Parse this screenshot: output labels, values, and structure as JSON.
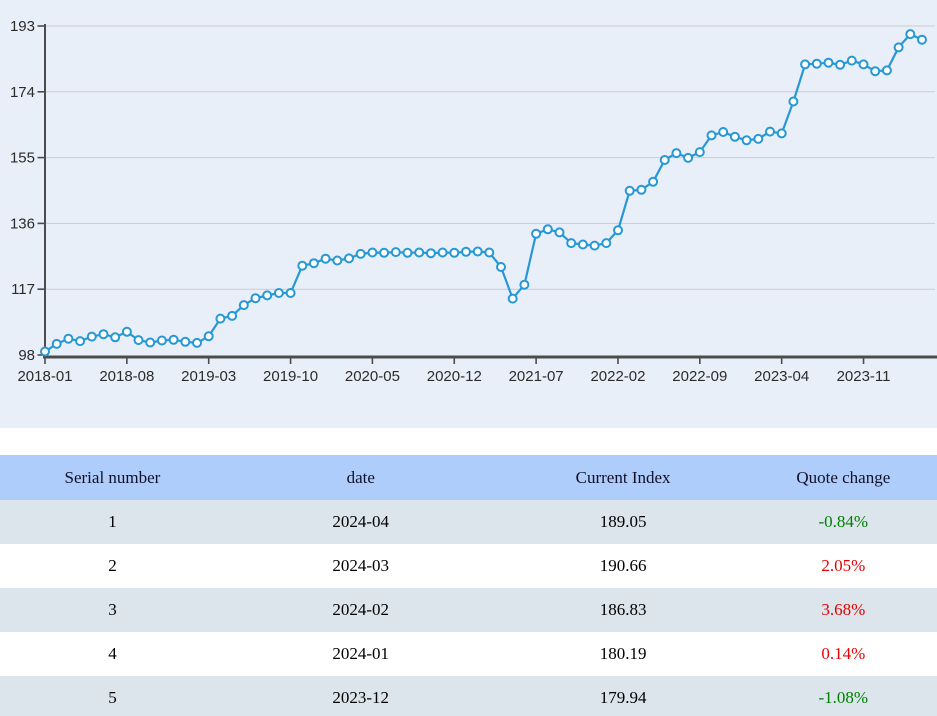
{
  "colors": {
    "line": "#2598d5",
    "marker_fill": "#ffffff",
    "chart_bg": "#e9eff8",
    "header_bg": "#aecdfb",
    "row_alt_bg": "#dbe5eb",
    "axis": "#4c4c4c",
    "grid": "#c9cdd4",
    "quote_up": "#e80000",
    "quote_down": "#008000"
  },
  "chart_data": {
    "type": "line",
    "title": "",
    "xlabel": "",
    "ylabel": "",
    "grid": true,
    "legend": false,
    "ylim": [
      98,
      193
    ],
    "y_ticks": [
      98,
      117,
      136,
      155,
      174,
      193
    ],
    "x_tick_labels": [
      "2018-01",
      "2018-08",
      "2019-03",
      "2019-10",
      "2020-05",
      "2020-12",
      "2021-07",
      "2022-02",
      "2022-09",
      "2023-04",
      "2023-11"
    ],
    "x": [
      "2018-01",
      "2018-02",
      "2018-03",
      "2018-04",
      "2018-05",
      "2018-06",
      "2018-07",
      "2018-08",
      "2018-09",
      "2018-10",
      "2018-11",
      "2018-12",
      "2019-01",
      "2019-02",
      "2019-03",
      "2019-04",
      "2019-05",
      "2019-06",
      "2019-07",
      "2019-08",
      "2019-09",
      "2019-10",
      "2019-11",
      "2019-12",
      "2020-01",
      "2020-02",
      "2020-03",
      "2020-04",
      "2020-05",
      "2020-06",
      "2020-07",
      "2020-08",
      "2020-09",
      "2020-10",
      "2020-11",
      "2020-12",
      "2021-01",
      "2021-02",
      "2021-03",
      "2021-04",
      "2021-05",
      "2021-06",
      "2021-07",
      "2021-08",
      "2021-09",
      "2021-10",
      "2021-11",
      "2021-12",
      "2022-01",
      "2022-02",
      "2022-03",
      "2022-04",
      "2022-05",
      "2022-06",
      "2022-07",
      "2022-08",
      "2022-09",
      "2022-10",
      "2022-11",
      "2022-12",
      "2023-01",
      "2023-02",
      "2023-03",
      "2023-04",
      "2023-05",
      "2023-06",
      "2023-07",
      "2023-08",
      "2023-09",
      "2023-10",
      "2023-11",
      "2023-12",
      "2024-01",
      "2024-02",
      "2024-03",
      "2024-04"
    ],
    "series": [
      {
        "name": "Current Index",
        "values": [
          99.0,
          101.2,
          102.7,
          102.0,
          103.3,
          104.0,
          103.1,
          104.7,
          102.3,
          101.6,
          102.2,
          102.4,
          101.8,
          101.5,
          103.4,
          108.5,
          109.3,
          112.4,
          114.4,
          115.2,
          115.9,
          115.9,
          123.8,
          124.5,
          125.8,
          125.3,
          125.9,
          127.2,
          127.6,
          127.5,
          127.7,
          127.5,
          127.6,
          127.4,
          127.6,
          127.5,
          127.8,
          127.9,
          127.6,
          123.4,
          114.3,
          118.3,
          133.0,
          134.3,
          133.4,
          130.3,
          129.9,
          129.6,
          130.3,
          134.0,
          145.4,
          145.7,
          148.0,
          154.3,
          156.3,
          154.9,
          156.6,
          161.4,
          162.4,
          161.0,
          160.0,
          160.4,
          162.5,
          162.0,
          171.2,
          181.9,
          182.1,
          182.4,
          181.8,
          183.0,
          181.9,
          179.94,
          180.19,
          186.83,
          190.66,
          189.05
        ]
      }
    ]
  },
  "table": {
    "headers": [
      "Serial number",
      "date",
      "Current Index",
      "Quote change"
    ],
    "rows": [
      {
        "serial": "1",
        "date": "2024-04",
        "index": "189.05",
        "change": "-0.84%",
        "change_color": "#008000"
      },
      {
        "serial": "2",
        "date": "2024-03",
        "index": "190.66",
        "change": "2.05%",
        "change_color": "#e80000"
      },
      {
        "serial": "3",
        "date": "2024-02",
        "index": "186.83",
        "change": "3.68%",
        "change_color": "#e80000"
      },
      {
        "serial": "4",
        "date": "2024-01",
        "index": "180.19",
        "change": "0.14%",
        "change_color": "#e80000"
      },
      {
        "serial": "5",
        "date": "2023-12",
        "index": "179.94",
        "change": "-1.08%",
        "change_color": "#008000"
      }
    ]
  }
}
